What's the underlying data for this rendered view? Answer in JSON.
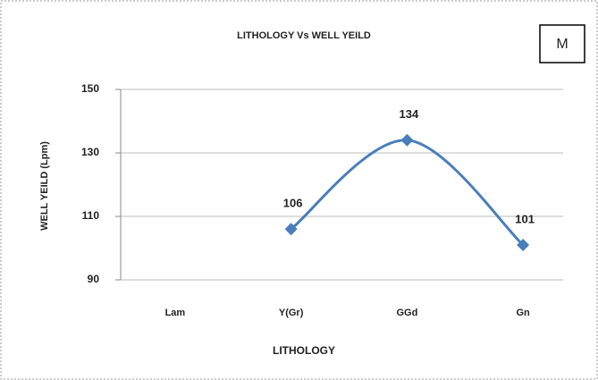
{
  "chart_data": {
    "type": "line",
    "title": "LITHOLOGY Vs WELL YEILD",
    "annotation": "M",
    "x_label": "LITHOLOGY",
    "y_label": "WELL YEILD (Lpm)",
    "categories": [
      "Lam",
      "Y(Gr)",
      "GGd",
      "Gn"
    ],
    "values": [
      null,
      106,
      134,
      101
    ],
    "color": "#4a7ebb",
    "ylim": [
      90,
      150
    ],
    "yticks": [
      90,
      110,
      130,
      150
    ],
    "grid": true,
    "smooth": true
  }
}
